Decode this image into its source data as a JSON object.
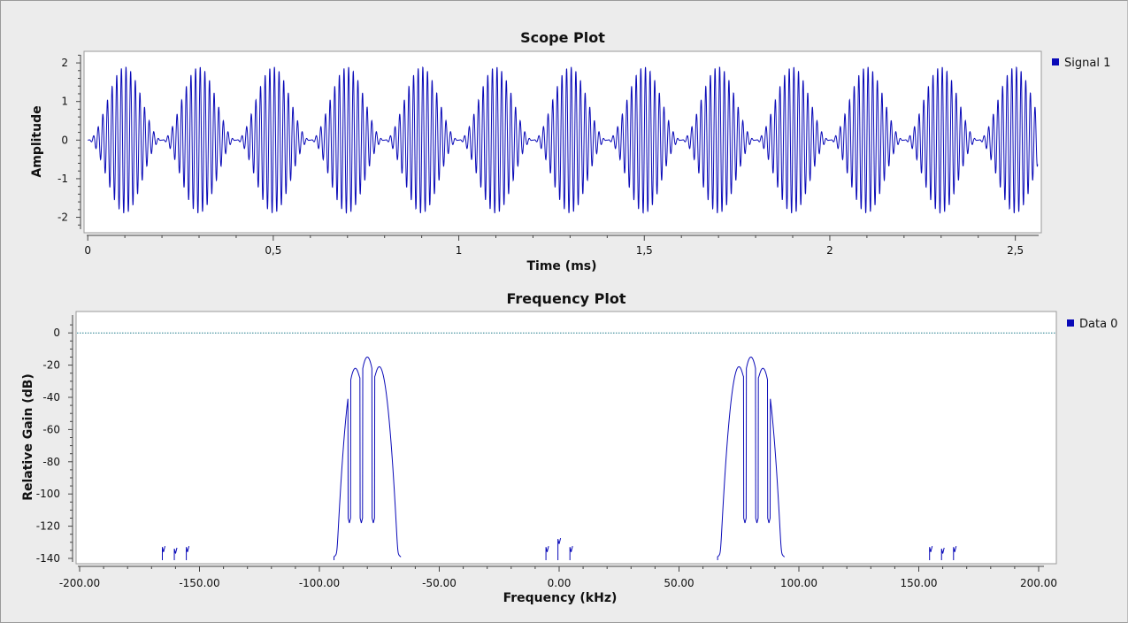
{
  "colors": {
    "signal": "#0a0ab8",
    "ref_line": "#1f7a8a",
    "background": "#ececec",
    "plot_bg": "#ffffff"
  },
  "chart_data": [
    {
      "type": "line",
      "title": "Scope Plot",
      "xlabel": "Time (ms)",
      "ylabel": "Amplitude",
      "xlim": [
        -0.01,
        2.57
      ],
      "ylim": [
        -2.4,
        2.3
      ],
      "x_ticks": [
        0,
        0.5,
        1,
        1.5,
        2,
        2.5
      ],
      "x_tick_labels": [
        "0",
        "0,5",
        "1",
        "1,5",
        "2",
        "2,5"
      ],
      "y_ticks": [
        -2,
        -1,
        0,
        1,
        2
      ],
      "y_tick_labels": [
        "-2",
        "-1",
        "0",
        "1",
        "2"
      ],
      "legend": "top-right",
      "grid": false,
      "series": [
        {
          "name": "Signal 1",
          "waveform": "amplitude-modulated sinusoid",
          "envelope_peak": 1.9,
          "envelope_period_ms": 0.2,
          "carrier_cycles_per_envelope": 16,
          "duration_ms": 2.56
        }
      ]
    },
    {
      "type": "line",
      "title": "Frequency Plot",
      "xlabel": "Frequency (kHz)",
      "ylabel": "Relative Gain (dB)",
      "xlim": [
        -200,
        200
      ],
      "ylim": [
        -140,
        10
      ],
      "x_ticks": [
        -200,
        -150,
        -100,
        -50,
        0,
        50,
        100,
        150,
        200
      ],
      "x_tick_labels": [
        "-200.00",
        "-150.00",
        "-100.00",
        "-50.00",
        "0.00",
        "50.00",
        "100.00",
        "150.00",
        "200.00"
      ],
      "y_ticks": [
        0,
        -20,
        -40,
        -60,
        -80,
        -100,
        -120,
        -140
      ],
      "y_tick_labels": [
        "0",
        "-20",
        "-40",
        "-60",
        "-80",
        "-100",
        "-120",
        "-140"
      ],
      "legend": "top-right",
      "grid": false,
      "reference_line_db": 0,
      "series": [
        {
          "name": "Data 0",
          "peaks": [
            {
              "freq_khz": -85,
              "db": -22
            },
            {
              "freq_khz": -80,
              "db": -15
            },
            {
              "freq_khz": -75,
              "db": -21
            },
            {
              "freq_khz": 75,
              "db": -21
            },
            {
              "freq_khz": 80,
              "db": -15
            },
            {
              "freq_khz": 85,
              "db": -22
            }
          ],
          "spurs": [
            {
              "freq_khz": -165,
              "db": -136
            },
            {
              "freq_khz": -160,
              "db": -137
            },
            {
              "freq_khz": -155,
              "db": -136
            },
            {
              "freq_khz": -5,
              "db": -136
            },
            {
              "freq_khz": 0,
              "db": -131
            },
            {
              "freq_khz": 5,
              "db": -136
            },
            {
              "freq_khz": 155,
              "db": -136
            },
            {
              "freq_khz": 160,
              "db": -137
            },
            {
              "freq_khz": 165,
              "db": -136
            }
          ]
        }
      ]
    }
  ]
}
